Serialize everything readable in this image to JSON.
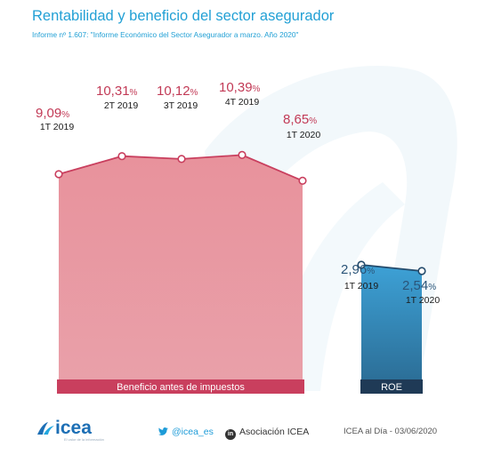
{
  "header": {
    "title": "Rentabilidad y beneficio del sector asegurador",
    "subtitle": "Informe nº 1.607: \"Informe Económico del Sector Asegurador a marzo. Año 2020\""
  },
  "colors": {
    "brand_blue": "#22a0d5",
    "benefit_area": "#e8929c",
    "benefit_line": "#c93f5e",
    "roe_area": "#3da1d6",
    "roe_line": "#234a6b",
    "benefit_label": "#c93f5e",
    "roe_label_bg": "#1f3a56",
    "value_text_red": "#c23a56",
    "value_text_blue": "#2b5478"
  },
  "chart_data": [
    {
      "type": "area",
      "name": "Beneficio antes de impuestos",
      "categories": [
        "1T 2019",
        "2T 2019",
        "3T 2019",
        "4T 2019",
        "1T 2020"
      ],
      "values": [
        9.09,
        10.31,
        10.12,
        10.39,
        8.65
      ],
      "value_labels": [
        "9,09",
        "10,31",
        "10,12",
        "10,39",
        "8,65"
      ],
      "unit": "%"
    },
    {
      "type": "area",
      "name": "ROE",
      "categories": [
        "1T 2019",
        "1T 2020"
      ],
      "values": [
        2.96,
        2.54
      ],
      "value_labels": [
        "2,96",
        "2,54"
      ],
      "unit": "%"
    }
  ],
  "footer": {
    "logo_text": "icea",
    "logo_tagline": "El valor de la información",
    "twitter": "@icea_es",
    "linkedin_icon": "in",
    "linkedin": "Asociación ICEA",
    "date": "ICEA al Día - 03/06/2020"
  }
}
